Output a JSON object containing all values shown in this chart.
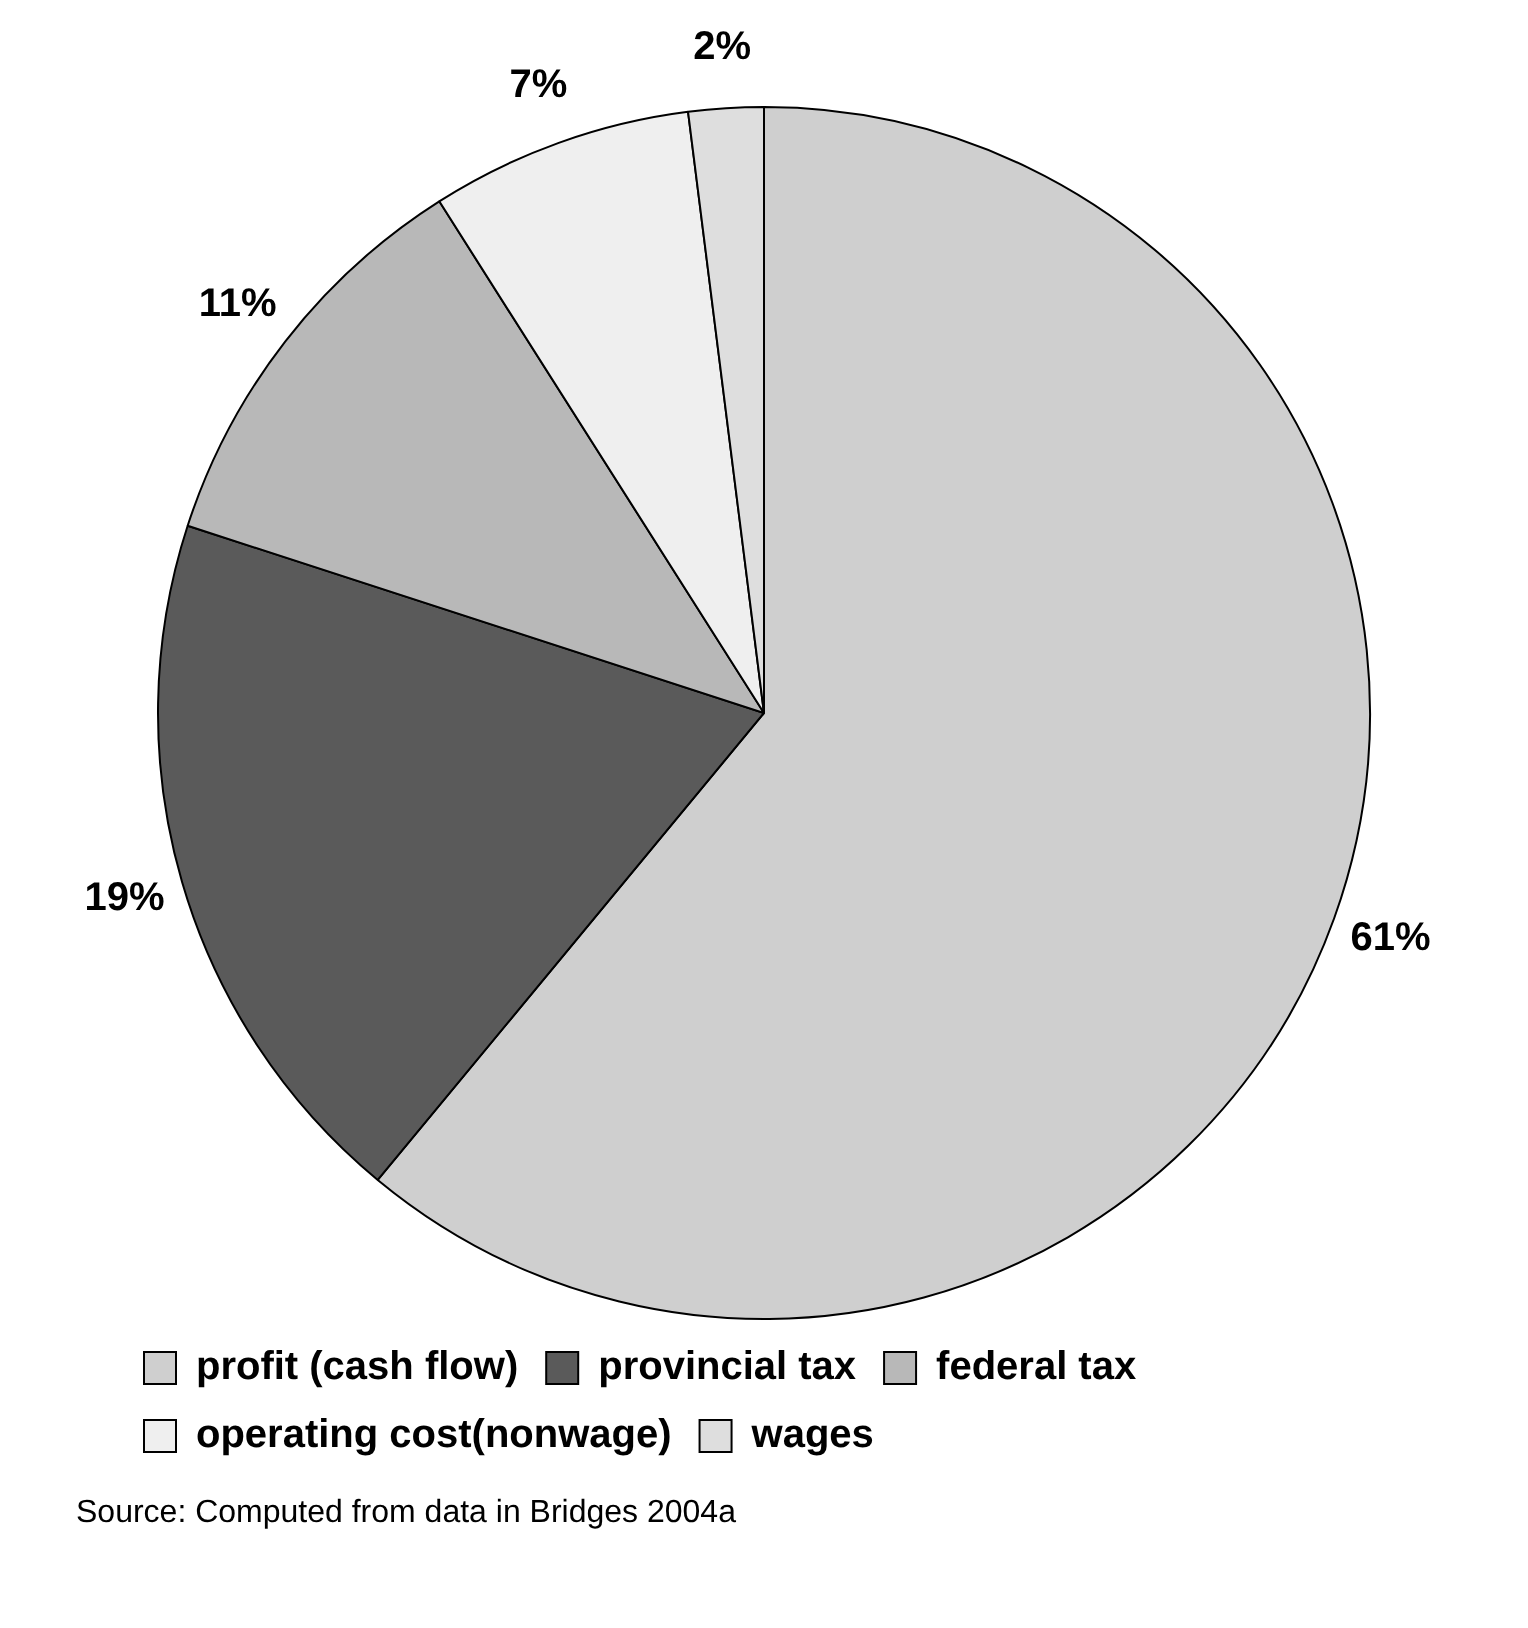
{
  "chart_data": {
    "type": "pie",
    "categories": [
      "profit (cash flow)",
      "provincial tax",
      "federal tax",
      "operating cost(nonwage)",
      "wages"
    ],
    "values": [
      61,
      19,
      11,
      7,
      2
    ],
    "colors": [
      "#cfcfcf",
      "#5a5a5a",
      "#b8b8b8",
      "#efefef",
      "#dedede"
    ],
    "value_labels": [
      "61%",
      "19%",
      "11%",
      "7%",
      "2%"
    ],
    "legend": "bottom",
    "annotations": [
      "Source: Computed from data in Bridges 2004a"
    ]
  }
}
